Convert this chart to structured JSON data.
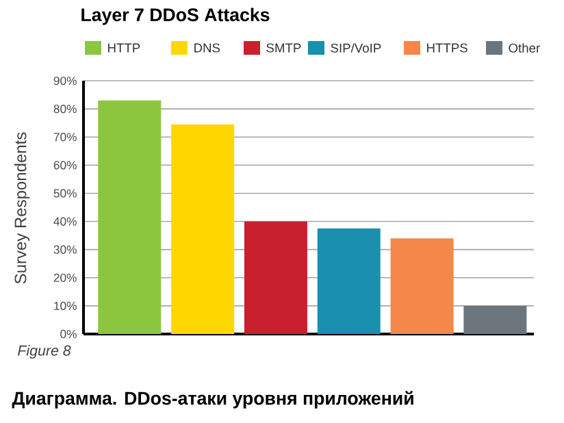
{
  "chart_data": {
    "type": "bar",
    "title": "Layer 7 DDoS Attacks",
    "ylabel": "Survey Respondents",
    "categories": [
      null,
      null,
      null,
      null,
      null,
      null
    ],
    "series": [
      {
        "name": "HTTP",
        "color": "#8cc63f",
        "values": [
          83,
          null,
          null,
          null,
          null,
          null
        ]
      },
      {
        "name": "DNS",
        "color": "#ffd700",
        "values": [
          null,
          74.5,
          null,
          null,
          null,
          null
        ]
      },
      {
        "name": "SMTP",
        "color": "#c8202f",
        "values": [
          null,
          null,
          40,
          null,
          null,
          null
        ]
      },
      {
        "name": "SIP/VoIP",
        "color": "#1a8fb0",
        "values": [
          null,
          null,
          null,
          37.5,
          null,
          null
        ]
      },
      {
        "name": "HTTPS",
        "color": "#f5874a",
        "values": [
          null,
          null,
          null,
          null,
          34,
          null
        ]
      },
      {
        "name": "Other",
        "color": "#6d757c",
        "values": [
          null,
          null,
          null,
          null,
          null,
          10
        ]
      }
    ],
    "ylim": [
      0,
      90
    ],
    "yticks": [
      {
        "value": 0,
        "label": "0%"
      },
      {
        "value": 10,
        "label": "10%"
      },
      {
        "value": 20,
        "label": "20%"
      },
      {
        "value": 30,
        "label": "30%"
      },
      {
        "value": 40,
        "label": "40%"
      },
      {
        "value": 50,
        "label": "50%"
      },
      {
        "value": 60,
        "label": "60%"
      },
      {
        "value": 70,
        "label": "70%"
      },
      {
        "value": 80,
        "label": "80%"
      },
      {
        "value": 90,
        "label": "90%"
      }
    ],
    "grid": "y",
    "legend": "top",
    "tick_labels": "y",
    "annotations": [
      "Figure 8",
      "Диаграмма. DDos-атаки уровня приложений"
    ]
  }
}
